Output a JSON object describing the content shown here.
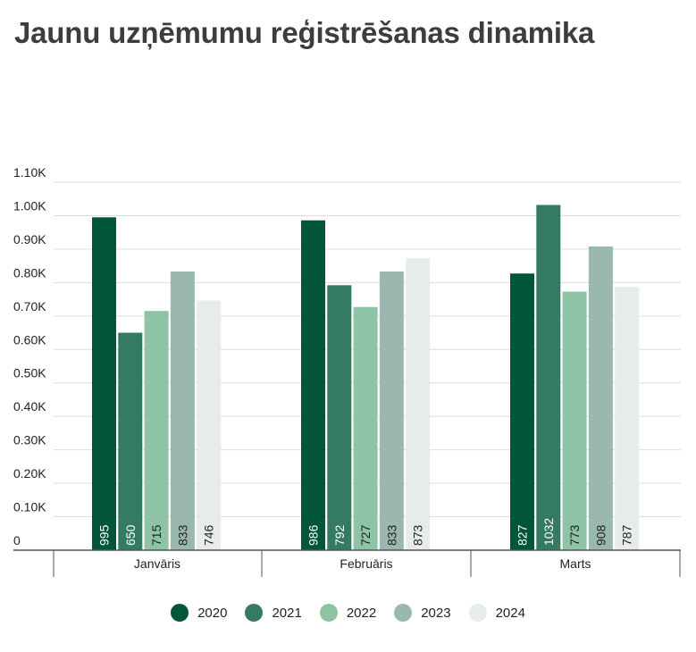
{
  "title": "Jaunu uzņēmumu reģistrēšanas dinamika",
  "chart_data": {
    "type": "bar",
    "categories": [
      "Janvāris",
      "Februāris",
      "Marts"
    ],
    "series": [
      {
        "name": "2020",
        "color": "#00553a",
        "label_color": "#ffffff",
        "values": [
          995,
          986,
          827
        ]
      },
      {
        "name": "2021",
        "color": "#357a63",
        "label_color": "#ffffff",
        "values": [
          650,
          792,
          1032
        ]
      },
      {
        "name": "2022",
        "color": "#8ec4a5",
        "label_color": "#222222",
        "values": [
          715,
          727,
          773
        ]
      },
      {
        "name": "2023",
        "color": "#9ab8b0",
        "label_color": "#222222",
        "values": [
          833,
          833,
          908
        ]
      },
      {
        "name": "2024",
        "color": "#e5ecea",
        "label_color": "#222222",
        "values": [
          746,
          873,
          787
        ]
      }
    ],
    "y_ticks": [
      {
        "value": 0,
        "label": "0"
      },
      {
        "value": 100,
        "label": "0.10K"
      },
      {
        "value": 200,
        "label": "0.20K"
      },
      {
        "value": 300,
        "label": "0.30K"
      },
      {
        "value": 400,
        "label": "0.40K"
      },
      {
        "value": 500,
        "label": "0.50K"
      },
      {
        "value": 600,
        "label": "0.60K"
      },
      {
        "value": 700,
        "label": "0.70K"
      },
      {
        "value": 800,
        "label": "0.80K"
      },
      {
        "value": 900,
        "label": "0.90K"
      },
      {
        "value": 1000,
        "label": "1.00K"
      },
      {
        "value": 1100,
        "label": "1.10K"
      }
    ],
    "ylim": [
      0,
      1100
    ],
    "grid": true,
    "legend_position": "bottom-center",
    "data_labels": "inside-bottom-rotated"
  }
}
